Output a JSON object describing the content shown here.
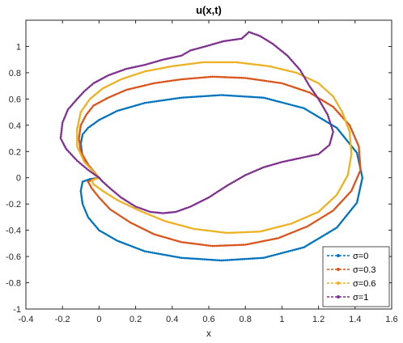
{
  "chart_data": {
    "type": "line",
    "title": "u(x,t)",
    "xlabel": "x",
    "ylabel": "",
    "xlim": [
      -0.4,
      1.6
    ],
    "ylim": [
      -1,
      1.2
    ],
    "xticks": [
      -0.4,
      -0.2,
      0,
      0.2,
      0.4,
      0.6,
      0.8,
      1,
      1.2,
      1.4,
      1.6
    ],
    "xtick_labels": [
      "-0.4",
      "-0.2",
      "0",
      "0.2",
      "0.4",
      "0.6",
      "0.8",
      "1",
      "1.2",
      "1.4",
      "1.6"
    ],
    "yticks": [
      -1,
      -0.8,
      -0.6,
      -0.4,
      -0.2,
      0,
      0.2,
      0.4,
      0.6,
      0.8,
      1
    ],
    "ytick_labels": [
      "-1",
      "-0.8",
      "-0.6",
      "-0.4",
      "-0.2",
      "0",
      "0.2",
      "0.4",
      "0.6",
      "0.8",
      "1"
    ],
    "grid": false,
    "legend_position": "bottom-right",
    "series": [
      {
        "name": "σ=0",
        "color": "#0072BD",
        "marker": "dot",
        "x": [
          0.0,
          -0.05,
          -0.09,
          -0.1,
          -0.09,
          -0.06,
          0.0,
          0.1,
          0.25,
          0.45,
          0.67,
          0.9,
          1.12,
          1.3,
          1.41,
          1.44,
          1.41,
          1.3,
          1.12,
          0.9,
          0.67,
          0.45,
          0.25,
          0.1,
          0.0,
          -0.06,
          -0.09,
          -0.1,
          -0.09,
          -0.05,
          0.0
        ],
        "y": [
          0.0,
          0.08,
          0.16,
          0.26,
          0.33,
          0.38,
          0.44,
          0.51,
          0.57,
          0.61,
          0.63,
          0.61,
          0.53,
          0.38,
          0.19,
          0.0,
          -0.19,
          -0.38,
          -0.53,
          -0.61,
          -0.63,
          -0.61,
          -0.56,
          -0.48,
          -0.4,
          -0.3,
          -0.2,
          -0.1,
          -0.03,
          -0.01,
          0.0
        ]
      },
      {
        "name": "σ=0.3",
        "color": "#D95319",
        "marker": "dot",
        "x": [
          0.0,
          -0.06,
          -0.1,
          -0.11,
          -0.1,
          -0.07,
          -0.03,
          0.05,
          0.15,
          0.3,
          0.45,
          0.62,
          0.8,
          1.0,
          1.15,
          1.28,
          1.37,
          1.42,
          1.43,
          1.38,
          1.28,
          1.14,
          0.98,
          0.8,
          0.62,
          0.45,
          0.3,
          0.17,
          0.06,
          0.0,
          -0.04,
          -0.06,
          -0.03,
          0.0
        ],
        "y": [
          0.0,
          0.1,
          0.2,
          0.3,
          0.4,
          0.48,
          0.55,
          0.61,
          0.67,
          0.72,
          0.75,
          0.77,
          0.76,
          0.72,
          0.65,
          0.54,
          0.4,
          0.24,
          0.06,
          -0.1,
          -0.25,
          -0.37,
          -0.46,
          -0.51,
          -0.52,
          -0.49,
          -0.43,
          -0.34,
          -0.24,
          -0.15,
          -0.08,
          -0.03,
          -0.01,
          0.0
        ]
      },
      {
        "name": "σ=0.6",
        "color": "#EDB120",
        "marker": "dot",
        "x": [
          0.0,
          -0.08,
          -0.12,
          -0.12,
          -0.1,
          -0.05,
          0.02,
          0.12,
          0.25,
          0.4,
          0.57,
          0.75,
          0.93,
          1.08,
          1.2,
          1.28,
          1.33,
          1.37,
          1.38,
          1.36,
          1.3,
          1.2,
          1.05,
          0.88,
          0.7,
          0.52,
          0.36,
          0.22,
          0.1,
          0.02,
          -0.03,
          -0.04,
          -0.02,
          0.0
        ],
        "y": [
          0.0,
          0.12,
          0.24,
          0.37,
          0.5,
          0.6,
          0.68,
          0.75,
          0.81,
          0.85,
          0.88,
          0.88,
          0.85,
          0.8,
          0.72,
          0.62,
          0.5,
          0.35,
          0.18,
          0.02,
          -0.13,
          -0.26,
          -0.35,
          -0.41,
          -0.42,
          -0.39,
          -0.33,
          -0.25,
          -0.17,
          -0.1,
          -0.05,
          -0.02,
          -0.01,
          0.0
        ]
      },
      {
        "name": "σ=1",
        "color": "#7E2F8E",
        "marker": "dot",
        "x": [
          0.0,
          -0.06,
          -0.12,
          -0.18,
          -0.21,
          -0.2,
          -0.17,
          -0.12,
          -0.08,
          -0.03,
          0.05,
          0.15,
          0.25,
          0.35,
          0.45,
          0.5,
          0.58,
          0.68,
          0.78,
          0.82,
          0.88,
          0.95,
          1.03,
          1.1,
          1.15,
          1.2,
          1.25,
          1.28,
          1.26,
          1.2,
          1.1,
          1.0,
          0.9,
          0.8,
          0.7,
          0.6,
          0.5,
          0.42,
          0.35,
          0.28,
          0.2,
          0.12,
          0.06,
          0.02,
          0.0
        ],
        "y": [
          0.0,
          0.06,
          0.13,
          0.22,
          0.3,
          0.42,
          0.52,
          0.6,
          0.66,
          0.72,
          0.78,
          0.83,
          0.86,
          0.9,
          0.93,
          0.97,
          1.0,
          1.04,
          1.06,
          1.11,
          1.08,
          1.02,
          0.93,
          0.82,
          0.7,
          0.6,
          0.48,
          0.35,
          0.25,
          0.18,
          0.15,
          0.12,
          0.08,
          0.02,
          -0.06,
          -0.15,
          -0.22,
          -0.26,
          -0.27,
          -0.26,
          -0.22,
          -0.15,
          -0.08,
          -0.03,
          0.0
        ]
      }
    ]
  }
}
